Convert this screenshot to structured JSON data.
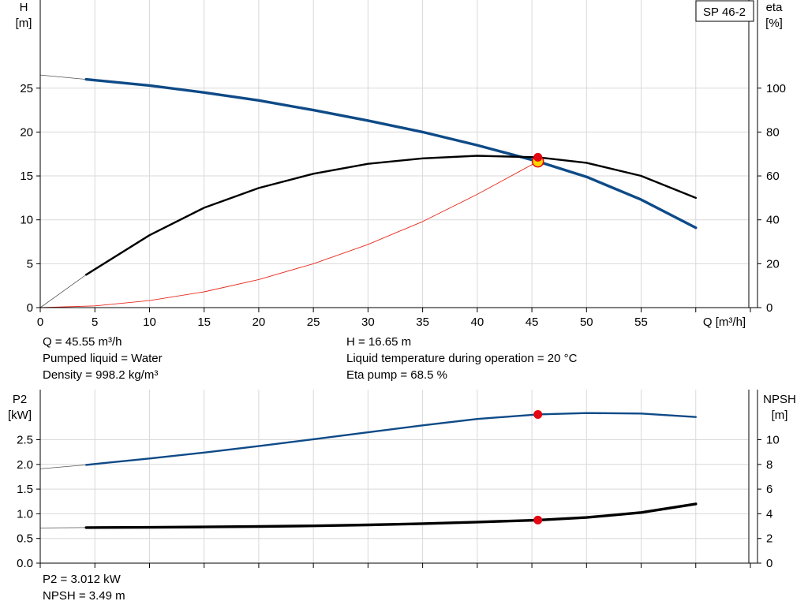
{
  "pump_model": "SP 46-2",
  "top_chart": {
    "y_left_label": [
      "H",
      "[m]"
    ],
    "y_right_label": [
      "eta",
      "[%]"
    ],
    "x_label": "Q [m³/h]"
  },
  "bottom_chart": {
    "y_left_label": [
      "P2",
      "[kW]"
    ],
    "y_right_label": [
      "NPSH",
      "[m]"
    ]
  },
  "info_top_left": [
    "Q = 45.55 m³/h",
    "Pumped liquid = Water",
    "Density = 998.2 kg/m³"
  ],
  "info_top_right": [
    "H = 16.65 m",
    "Liquid temperature during operation = 20 °C",
    "Eta pump = 68.5 %"
  ],
  "info_bottom": [
    "P2 = 3.012 kW",
    "NPSH = 3.49 m"
  ],
  "colors": {
    "head": "#0e4a87",
    "eta": "#000000",
    "system": "#e8291c",
    "p2": "#0e4a87",
    "npsh": "#000000",
    "point": "#e30613",
    "grid": "#d9d9d9"
  },
  "chart_data": [
    {
      "type": "line",
      "title": "",
      "xlabel": "Q [m³/h]",
      "xlim": [
        0,
        65
      ],
      "x_ticks": [
        0,
        5,
        10,
        15,
        20,
        25,
        30,
        35,
        40,
        45,
        50,
        55
      ],
      "ylabel_left": "H [m]",
      "ylim_left": [
        0,
        30
      ],
      "y_ticks_left": [
        0,
        5,
        10,
        15,
        20,
        25
      ],
      "ylabel_right": "eta [%]",
      "ylim_right": [
        0,
        120
      ],
      "y_ticks_right": [
        0,
        20,
        40,
        60,
        80,
        100
      ],
      "grid": true,
      "series": [
        {
          "key": "head",
          "axis": "left",
          "x": [
            0,
            4.2
          ],
          "y": [
            26.5,
            26.0
          ],
          "style": "thin-extension"
        },
        {
          "key": "head",
          "axis": "left",
          "x": [
            4.2,
            10,
            15,
            20,
            25,
            30,
            35,
            40,
            45.55,
            50,
            55,
            60
          ],
          "y": [
            26.0,
            25.3,
            24.5,
            23.6,
            22.5,
            21.3,
            20.0,
            18.5,
            16.65,
            14.9,
            12.3,
            9.1
          ],
          "style": "thick"
        },
        {
          "key": "eta",
          "axis": "right",
          "x": [
            0,
            4.2
          ],
          "y": [
            0,
            15
          ],
          "style": "thin-extension"
        },
        {
          "key": "eta",
          "axis": "right",
          "x": [
            4.2,
            10,
            15,
            20,
            25,
            30,
            35,
            40,
            45.55,
            50,
            55,
            60
          ],
          "y": [
            15,
            33,
            45.5,
            54.5,
            61,
            65.5,
            68,
            69.2,
            68.5,
            66,
            60,
            50
          ],
          "style": "medium"
        },
        {
          "key": "system",
          "axis": "left",
          "x": [
            0,
            5,
            10,
            15,
            20,
            25,
            30,
            35,
            40,
            45.55
          ],
          "y": [
            0,
            0.2,
            0.8,
            1.8,
            3.2,
            5.0,
            7.2,
            9.8,
            12.9,
            16.65
          ],
          "style": "thin"
        }
      ],
      "operating_point": {
        "x": 45.55,
        "y_left": 16.65,
        "y_right": 68.5
      }
    },
    {
      "type": "line",
      "title": "",
      "xlabel": "",
      "xlim": [
        0,
        65
      ],
      "x_ticks": [
        0,
        5,
        10,
        15,
        20,
        25,
        30,
        35,
        40,
        45,
        50,
        55
      ],
      "ylabel_left": "P2 [kW]",
      "ylim_left": [
        0,
        3.1
      ],
      "y_ticks_left": [
        0.0,
        0.5,
        1.0,
        1.5,
        2.0,
        2.5
      ],
      "ylabel_right": "NPSH [m]",
      "ylim_right": [
        0,
        12.4
      ],
      "y_ticks_right": [
        0,
        2,
        4,
        6,
        8,
        10
      ],
      "grid": true,
      "series": [
        {
          "key": "p2",
          "axis": "left",
          "x": [
            0,
            4.2
          ],
          "y": [
            1.91,
            1.99
          ],
          "style": "thin-extension"
        },
        {
          "key": "p2",
          "axis": "left",
          "x": [
            4.2,
            10,
            15,
            20,
            25,
            30,
            35,
            40,
            45.55,
            50,
            55,
            60
          ],
          "y": [
            1.99,
            2.12,
            2.24,
            2.37,
            2.51,
            2.65,
            2.79,
            2.92,
            3.012,
            3.04,
            3.03,
            2.96
          ],
          "style": "medium"
        },
        {
          "key": "npsh",
          "axis": "right",
          "x": [
            0,
            4.2
          ],
          "y": [
            2.85,
            2.88
          ],
          "style": "thin-extension"
        },
        {
          "key": "npsh",
          "axis": "right",
          "x": [
            4.2,
            10,
            15,
            20,
            25,
            30,
            35,
            40,
            45.55,
            50,
            55,
            60
          ],
          "y": [
            2.88,
            2.9,
            2.93,
            2.97,
            3.02,
            3.1,
            3.2,
            3.33,
            3.49,
            3.7,
            4.1,
            4.8
          ],
          "style": "thick"
        }
      ],
      "operating_point": {
        "x": 45.55,
        "y_left": 3.012,
        "y_right": 3.49
      }
    }
  ]
}
